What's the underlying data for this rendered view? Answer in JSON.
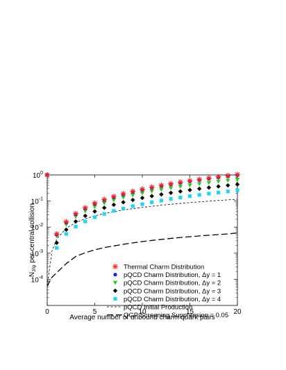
{
  "chart_data": {
    "type": "scatter",
    "x_scale": "linear",
    "y_scale": "log",
    "xlim": [
      0,
      20
    ],
    "ylim": [
      1e-05,
      1
    ],
    "xlabel": "Average number of unbound charm quark pairs",
    "ylabel": "Nₕ₂ψ per central collision",
    "ylabel_main": "N",
    "ylabel_sub": "J/ψ",
    "ylabel_rest": " per central collision",
    "x_ticks": [
      {
        "value": 0,
        "label": "0"
      },
      {
        "value": 5,
        "label": "5"
      },
      {
        "value": 10,
        "label": "10"
      },
      {
        "value": 15,
        "label": "15"
      },
      {
        "value": 20,
        "label": "20"
      }
    ],
    "y_ticks": [
      {
        "value": 0.0001,
        "base": "10",
        "exp": "-4"
      },
      {
        "value": 0.001,
        "base": "10",
        "exp": "-3"
      },
      {
        "value": 0.01,
        "base": "10",
        "exp": "-2"
      },
      {
        "value": 0.1,
        "base": "10",
        "exp": "-1"
      },
      {
        "value": 1,
        "base": "10",
        "exp": "0"
      }
    ],
    "legend_position": "bottom-right",
    "series": [
      {
        "name": "Thermal Charm Distribution",
        "marker": "asterisk",
        "color": "#ff2020",
        "x": [
          0,
          1,
          2,
          3,
          4,
          5,
          6,
          7,
          8,
          9,
          10,
          11,
          12,
          13,
          14,
          15,
          16,
          17,
          18,
          19,
          20
        ],
        "y": [
          1.0,
          0.0055,
          0.016,
          0.033,
          0.055,
          0.083,
          0.115,
          0.15,
          0.19,
          0.235,
          0.285,
          0.34,
          0.4,
          0.46,
          0.53,
          0.6,
          0.68,
          0.76,
          0.85,
          0.94,
          1.04
        ]
      },
      {
        "name": "pQCD Charm Distribution, Δy = 1",
        "marker": "circle",
        "color": "#1e1ee6",
        "x": [
          0,
          1,
          2,
          3,
          4,
          5,
          6,
          7,
          8,
          9,
          10,
          11,
          12,
          13,
          14,
          15,
          16,
          17,
          18,
          19,
          20
        ],
        "y": [
          1.0,
          0.0052,
          0.015,
          0.031,
          0.052,
          0.078,
          0.108,
          0.142,
          0.18,
          0.222,
          0.27,
          0.322,
          0.378,
          0.438,
          0.5,
          0.57,
          0.64,
          0.72,
          0.8,
          0.89,
          0.98
        ]
      },
      {
        "name": "pQCD Charm Distribution, Δy = 2",
        "marker": "triangle-down",
        "color": "#22cc22",
        "x": [
          0,
          1,
          2,
          3,
          4,
          5,
          6,
          7,
          8,
          9,
          10,
          11,
          12,
          13,
          14,
          15,
          16,
          17,
          18,
          19,
          20
        ],
        "y": [
          1.0,
          0.0045,
          0.0125,
          0.025,
          0.041,
          0.06,
          0.083,
          0.108,
          0.136,
          0.168,
          0.2,
          0.236,
          0.275,
          0.316,
          0.36,
          0.405,
          0.455,
          0.505,
          0.56,
          0.615,
          0.67
        ]
      },
      {
        "name": "pQCD Charm Distribution, Δy = 3",
        "marker": "diamond",
        "color": "#000000",
        "x": [
          1,
          2,
          3,
          4,
          5,
          6,
          7,
          8,
          9,
          10,
          11,
          12,
          13,
          14,
          15,
          16,
          17,
          18,
          19,
          20
        ],
        "y": [
          0.0025,
          0.008,
          0.0165,
          0.027,
          0.04,
          0.055,
          0.072,
          0.09,
          0.11,
          0.132,
          0.155,
          0.18,
          0.206,
          0.234,
          0.264,
          0.295,
          0.328,
          0.362,
          0.398,
          0.435
        ]
      },
      {
        "name": "pQCD Charm Distribution, Δy = 4",
        "marker": "square",
        "color": "#22d6f0",
        "x": [
          0,
          1,
          2,
          3,
          4,
          5,
          6,
          7,
          8,
          9,
          10,
          11,
          12,
          13,
          14,
          15,
          16,
          17,
          18,
          19,
          20
        ],
        "y": [
          1.0,
          0.0016,
          0.0055,
          0.0105,
          0.0165,
          0.024,
          0.032,
          0.042,
          0.052,
          0.064,
          0.076,
          0.09,
          0.104,
          0.12,
          0.136,
          0.154,
          0.172,
          0.192,
          0.212,
          0.234,
          0.256
        ]
      },
      {
        "name": "pQCD Initial Production",
        "line": "short-dash",
        "color": "#000000",
        "x": [
          0,
          0.5,
          1,
          2,
          3,
          4,
          5,
          6,
          7,
          8,
          9,
          10,
          11,
          12,
          13,
          14,
          15,
          16,
          17,
          18,
          19,
          20
        ],
        "y": [
          5.5e-05,
          0.0012,
          0.0035,
          0.009,
          0.015,
          0.021,
          0.027,
          0.033,
          0.039,
          0.045,
          0.051,
          0.057,
          0.063,
          0.069,
          0.075,
          0.081,
          0.087,
          0.093,
          0.099,
          0.105,
          0.111,
          0.117
        ]
      },
      {
        "name": "QGP Screening Suppression = 0.05",
        "line": "long-dash",
        "color": "#000000",
        "x": [
          0,
          0.5,
          1,
          2,
          3,
          4,
          5,
          6,
          7,
          8,
          9,
          10,
          11,
          12,
          13,
          14,
          15,
          16,
          17,
          18,
          19,
          20
        ],
        "y": [
          5.5e-05,
          0.00012,
          0.00018,
          0.0004,
          0.00075,
          0.00105,
          0.00135,
          0.00165,
          0.0019,
          0.0022,
          0.0025,
          0.0028,
          0.0031,
          0.0034,
          0.0037,
          0.004,
          0.0043,
          0.0046,
          0.0049,
          0.0052,
          0.0055,
          0.006
        ]
      }
    ]
  }
}
